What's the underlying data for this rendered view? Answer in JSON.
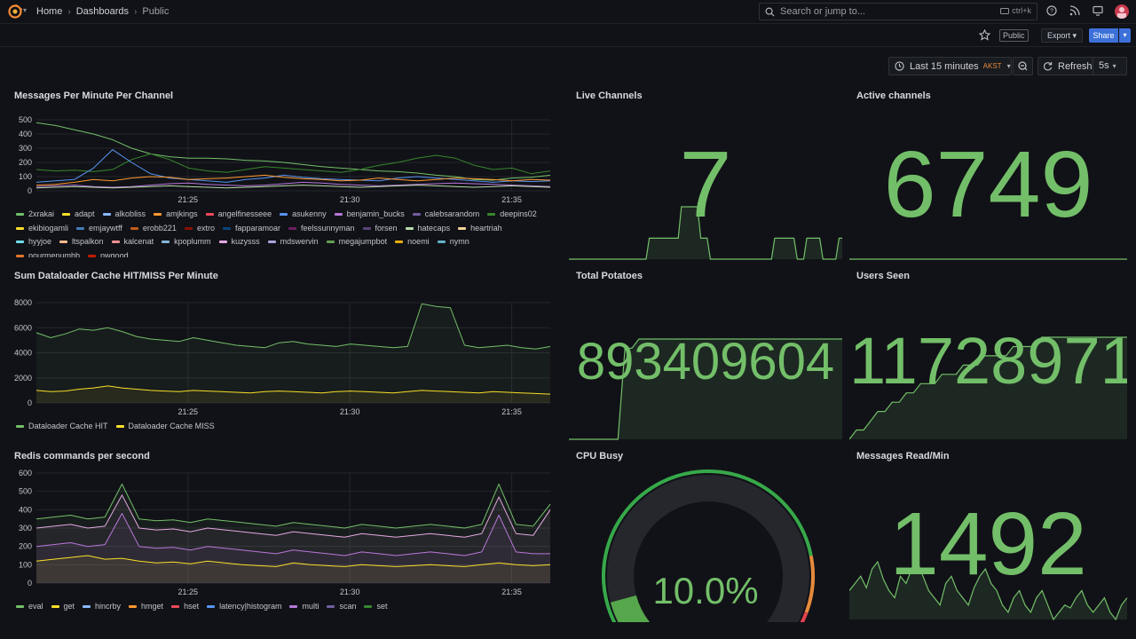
{
  "nav": {
    "breadcrumb": [
      "Home",
      "Dashboards",
      "Public"
    ],
    "search_placeholder": "Search or jump to...",
    "search_shortcut": "ctrl+k"
  },
  "toolbar": {
    "public_badge": "Public",
    "export_label": "Export",
    "share_label": "Share"
  },
  "time": {
    "range_label": "Last 15 minutes",
    "timezone": "AKST",
    "refresh_label": "Refresh",
    "interval": "5s"
  },
  "colors": {
    "green": "#73bf69",
    "yellow": "#fade2a",
    "blue": "#5794f2",
    "orange": "#ff9830",
    "red": "#f2495c",
    "purple": "#b877d9",
    "accent": "#3d71d9"
  },
  "panels": {
    "messages": {
      "title": "Messages Per Minute Per Channel",
      "legend": [
        {
          "name": "2xrakai",
          "color": "#73bf69"
        },
        {
          "name": "adapt",
          "color": "#fade2a"
        },
        {
          "name": "alkobliss",
          "color": "#8ab8ff"
        },
        {
          "name": "amjkings",
          "color": "#ff9830"
        },
        {
          "name": "angelfinesseee",
          "color": "#f2495c"
        },
        {
          "name": "asukenny",
          "color": "#5794f2"
        },
        {
          "name": "benjamin_bucks",
          "color": "#b877d9"
        },
        {
          "name": "calebsarandom",
          "color": "#705da0"
        },
        {
          "name": "deepins02",
          "color": "#37872d"
        },
        {
          "name": "ekibiogamli",
          "color": "#fade2a"
        },
        {
          "name": "emjaywtff",
          "color": "#447ebc"
        },
        {
          "name": "erobb221",
          "color": "#c15c17"
        },
        {
          "name": "extro",
          "color": "#890f02"
        },
        {
          "name": "fapparamoar",
          "color": "#0a437c"
        },
        {
          "name": "feelssunnyman",
          "color": "#6d1f62"
        },
        {
          "name": "forsen",
          "color": "#584477"
        },
        {
          "name": "hatecaps",
          "color": "#b7dbab"
        },
        {
          "name": "heartriah",
          "color": "#f4d598"
        },
        {
          "name": "hyyjoe",
          "color": "#70dbed"
        },
        {
          "name": "ltspalkon",
          "color": "#f9ba8f"
        },
        {
          "name": "kalcenat",
          "color": "#f29191"
        },
        {
          "name": "kpoplumm",
          "color": "#82b5d8"
        },
        {
          "name": "kuzysss",
          "color": "#e5a8e2"
        },
        {
          "name": "mdswervin",
          "color": "#aea2e0"
        },
        {
          "name": "megajumpbot",
          "color": "#629e51"
        },
        {
          "name": "noemi",
          "color": "#e5ac0e"
        },
        {
          "name": "nymn",
          "color": "#64b0c8"
        },
        {
          "name": "pourmenumbb",
          "color": "#e0752d"
        },
        {
          "name": "pwgood",
          "color": "#bf1b00"
        }
      ],
      "chart_data": {
        "type": "line",
        "x_ticks": [
          "21:25",
          "21:30",
          "21:35"
        ],
        "y_ticks": [
          0,
          100,
          200,
          300,
          400,
          500
        ],
        "ylim": [
          0,
          500
        ],
        "series": [
          {
            "name": "2xrakai",
            "color": "#73bf69",
            "values": [
              480,
              460,
              430,
              400,
              360,
              300,
              260,
              240,
              230,
              230,
              225,
              215,
              210,
              200,
              185,
              170,
              160,
              150,
              140,
              135,
              125,
              110,
              100,
              80,
              75,
              90,
              95,
              110
            ]
          },
          {
            "name": "deepins02",
            "color": "#37872d",
            "values": [
              150,
              140,
              145,
              135,
              150,
              220,
              260,
              220,
              160,
              140,
              130,
              150,
              170,
              160,
              150,
              140,
              130,
              150,
              180,
              200,
              230,
              250,
              230,
              180,
              150,
              160,
              120,
              140
            ]
          },
          {
            "name": "asukenny",
            "color": "#5794f2",
            "values": [
              60,
              70,
              80,
              160,
              290,
              200,
              120,
              90,
              80,
              70,
              60,
              80,
              90,
              110,
              95,
              85,
              80,
              75,
              70,
              90,
              100,
              90,
              80,
              70,
              60,
              70,
              65,
              70
            ]
          },
          {
            "name": "amjkings",
            "color": "#ff9830",
            "values": [
              40,
              45,
              60,
              80,
              70,
              90,
              100,
              95,
              80,
              85,
              90,
              100,
              110,
              95,
              85,
              80,
              70,
              75,
              90,
              80,
              70,
              80,
              90,
              85,
              80,
              70,
              80,
              75
            ]
          },
          {
            "name": "benjamin_bucks",
            "color": "#b877d9",
            "values": [
              30,
              35,
              40,
              30,
              25,
              30,
              40,
              50,
              55,
              45,
              40,
              35,
              40,
              50,
              60,
              55,
              45,
              40,
              35,
              40,
              45,
              50,
              55,
              50,
              45,
              40,
              35,
              30
            ]
          },
          {
            "name": "hatecaps",
            "color": "#b7dbab",
            "values": [
              20,
              25,
              30,
              25,
              20,
              25,
              30,
              35,
              30,
              25,
              20,
              25,
              30,
              35,
              40,
              35,
              30,
              25,
              30,
              35,
              40,
              35,
              30,
              25,
              30,
              35,
              30,
              25
            ]
          }
        ]
      }
    },
    "live_channels": {
      "title": "Live Channels",
      "value": "7",
      "spark": [
        3,
        3,
        3,
        3,
        3,
        3,
        3,
        3,
        3,
        3,
        3,
        3,
        3,
        3,
        3,
        3,
        3,
        3,
        3,
        3,
        3,
        3,
        3,
        3,
        3,
        5,
        5,
        5,
        5,
        5,
        5,
        5,
        5,
        5,
        5,
        8,
        8,
        8,
        8,
        8,
        8,
        5,
        5,
        5,
        3,
        3,
        3,
        3,
        3,
        3,
        3,
        3,
        3,
        3,
        3,
        3,
        3,
        3,
        3,
        3,
        3,
        3,
        3,
        3,
        5,
        5,
        5,
        5,
        5,
        5,
        5,
        3,
        3,
        3,
        5,
        5,
        5,
        5,
        5,
        3,
        3,
        3,
        3,
        3,
        5,
        5
      ]
    },
    "active_channels": {
      "title": "Active channels",
      "value": "6749",
      "spark": [
        6749,
        6749,
        6749,
        6749,
        6749,
        6749
      ]
    },
    "dataloader": {
      "title": "Sum Dataloader Cache HIT/MISS Per Minute",
      "legend": [
        {
          "name": "Dataloader Cache HIT",
          "color": "#73bf69"
        },
        {
          "name": "Dataloader Cache MISS",
          "color": "#fade2a"
        }
      ],
      "chart_data": {
        "type": "line",
        "x_ticks": [
          "21:25",
          "21:30",
          "21:35"
        ],
        "y_ticks": [
          0,
          2000,
          4000,
          6000,
          8000
        ],
        "ylim": [
          0,
          8000
        ],
        "series": [
          {
            "name": "Dataloader Cache HIT",
            "color": "#73bf69",
            "values": [
              5600,
              5200,
              5500,
              5900,
              5800,
              6000,
              5700,
              5300,
              5100,
              5000,
              4900,
              5200,
              5000,
              4800,
              4600,
              4500,
              4400,
              4800,
              4900,
              4700,
              4600,
              4500,
              4700,
              4600,
              4500,
              4400,
              4500,
              7900,
              7700,
              7600,
              4600,
              4400,
              4500,
              4600,
              4400,
              4300,
              4500
            ]
          },
          {
            "name": "Dataloader Cache MISS",
            "color": "#fade2a",
            "values": [
              1000,
              900,
              950,
              1100,
              1200,
              1350,
              1200,
              1100,
              1000,
              950,
              900,
              1000,
              950,
              900,
              850,
              800,
              900,
              950,
              900,
              850,
              800,
              900,
              950,
              900,
              850,
              800,
              900,
              1000,
              950,
              900,
              850,
              800,
              900,
              850,
              800,
              750,
              700
            ]
          }
        ]
      }
    },
    "total_potatoes": {
      "title": "Total Potatoes",
      "value": "893409604",
      "spark": [
        0,
        0,
        0,
        0,
        0,
        0,
        0,
        0,
        10,
        10,
        11,
        11,
        11,
        11,
        11,
        11,
        11,
        11,
        11,
        11,
        11,
        11,
        11,
        11,
        11,
        11,
        11,
        11,
        11,
        11,
        11,
        11,
        11,
        11,
        11,
        11,
        11,
        11,
        11,
        11
      ]
    },
    "users_seen": {
      "title": "Users Seen",
      "value": "11728971",
      "spark": [
        0,
        1,
        1,
        2,
        3,
        3,
        4,
        4,
        5,
        5,
        6,
        6,
        6,
        7,
        7,
        7,
        8,
        8,
        8,
        9,
        9,
        9,
        9,
        10,
        10,
        10,
        10,
        11,
        11,
        11,
        11,
        11,
        11,
        11,
        11,
        11,
        11,
        11,
        11,
        11
      ]
    },
    "redis": {
      "title": "Redis commands per second",
      "legend": [
        {
          "name": "eval",
          "color": "#73bf69"
        },
        {
          "name": "get",
          "color": "#fade2a"
        },
        {
          "name": "hincrby",
          "color": "#8ab8ff"
        },
        {
          "name": "hmget",
          "color": "#ff9830"
        },
        {
          "name": "hset",
          "color": "#f2495c"
        },
        {
          "name": "latency|histogram",
          "color": "#5794f2"
        },
        {
          "name": "multi",
          "color": "#b877d9"
        },
        {
          "name": "scan",
          "color": "#705da0"
        },
        {
          "name": "set",
          "color": "#37872d"
        }
      ],
      "chart_data": {
        "type": "area",
        "x_ticks": [
          "21:25",
          "21:30",
          "21:35"
        ],
        "y_ticks": [
          0,
          100,
          200,
          300,
          400,
          500,
          600
        ],
        "ylim": [
          0,
          600
        ],
        "series": [
          {
            "name": "eval",
            "color": "#73bf69",
            "values": [
              350,
              360,
              370,
              350,
              360,
              540,
              350,
              340,
              345,
              330,
              350,
              340,
              330,
              320,
              310,
              330,
              320,
              310,
              300,
              320,
              310,
              300,
              310,
              320,
              310,
              300,
              320,
              540,
              320,
              310,
              430
            ]
          },
          {
            "name": "hincrby",
            "color": "#e5a8e2",
            "values": [
              300,
              310,
              320,
              300,
              310,
              480,
              300,
              290,
              295,
              280,
              300,
              290,
              280,
              270,
              260,
              280,
              270,
              260,
              250,
              270,
              260,
              250,
              260,
              270,
              260,
              250,
              270,
              470,
              270,
              260,
              400
            ]
          },
          {
            "name": "multi",
            "color": "#b877d9",
            "values": [
              200,
              210,
              220,
              200,
              210,
              380,
              200,
              190,
              195,
              180,
              200,
              190,
              180,
              170,
              160,
              180,
              170,
              160,
              150,
              170,
              160,
              150,
              160,
              170,
              160,
              150,
              170,
              370,
              170,
              160,
              160
            ]
          },
          {
            "name": "get",
            "color": "#fade2a",
            "values": [
              120,
              130,
              140,
              150,
              130,
              135,
              120,
              110,
              115,
              105,
              120,
              110,
              100,
              95,
              90,
              110,
              100,
              95,
              90,
              100,
              95,
              90,
              95,
              100,
              95,
              90,
              100,
              110,
              100,
              95,
              100
            ]
          }
        ]
      }
    },
    "cpu": {
      "title": "CPU Busy",
      "value": "10.0%",
      "fraction": 0.1,
      "min": 0,
      "max": 100
    },
    "messages_read": {
      "title": "Messages Read/Min",
      "value": "1492",
      "spark": [
        40,
        45,
        50,
        42,
        55,
        60,
        48,
        40,
        35,
        50,
        45,
        55,
        60,
        50,
        40,
        35,
        30,
        45,
        50,
        40,
        35,
        30,
        42,
        50,
        55,
        45,
        40,
        30,
        25,
        35,
        40,
        30,
        25,
        35,
        40,
        30,
        20,
        25,
        30,
        28,
        35,
        40,
        30,
        25,
        30,
        35,
        25,
        20,
        30,
        35
      ]
    }
  }
}
